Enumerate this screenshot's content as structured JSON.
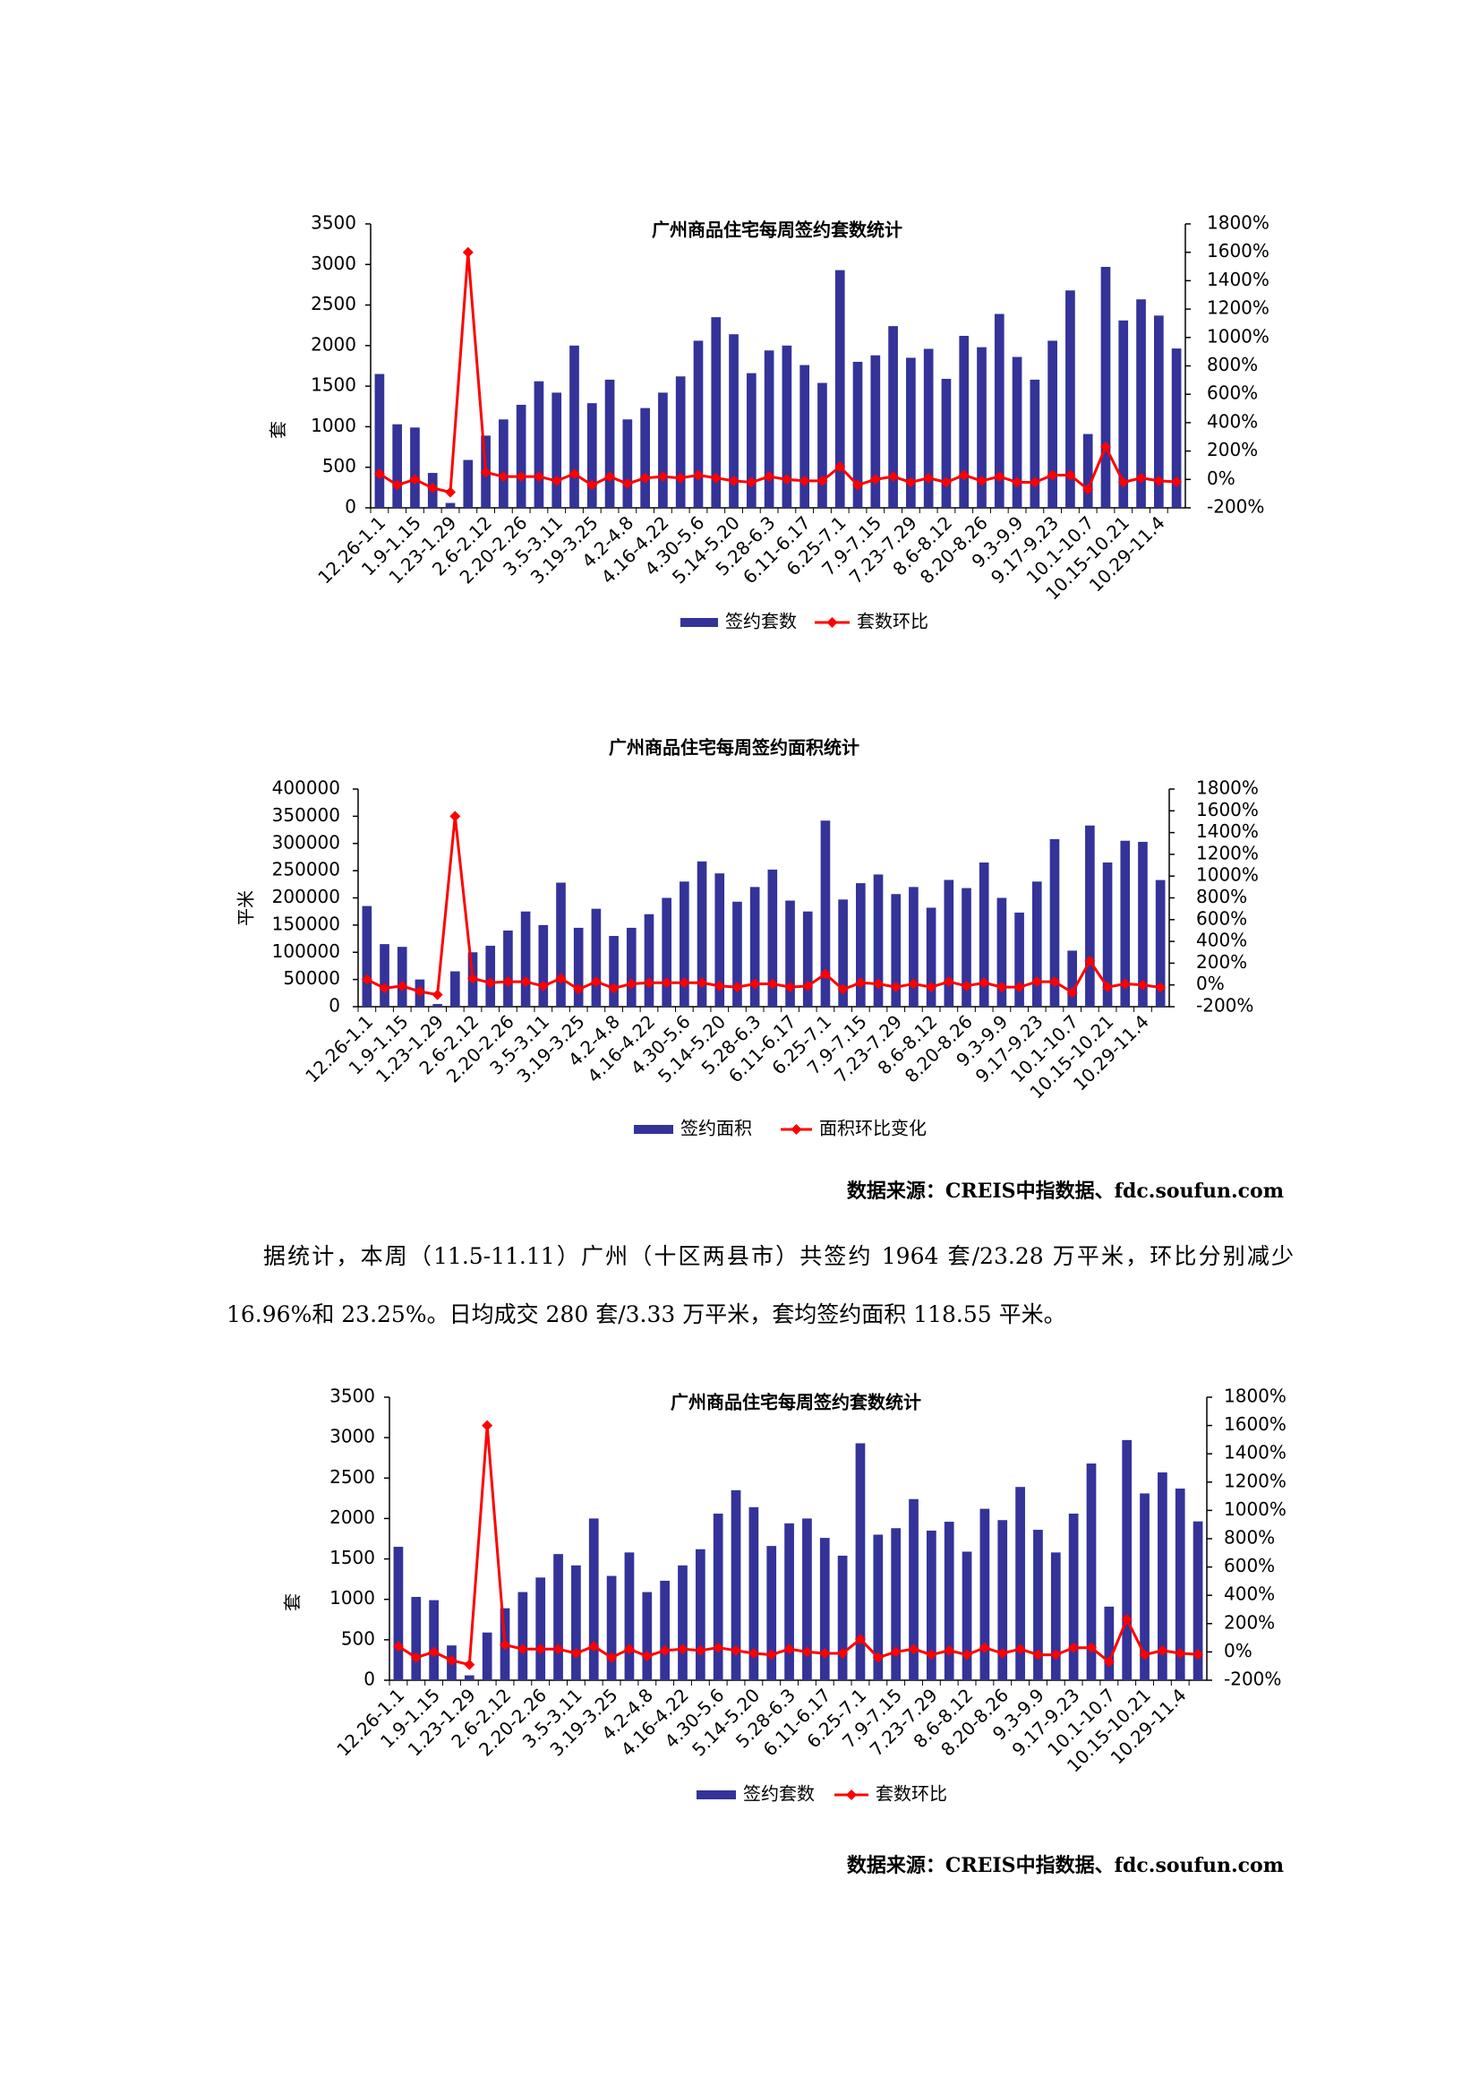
{
  "chart_data": [
    {
      "type": "bar",
      "title": "广州商品住宅每周签约套数统计",
      "ylabel": "套",
      "categories": [
        "12.26-1.1",
        null,
        "1.9-1.15",
        null,
        "1.23-1.29",
        null,
        "2.6-2.12",
        null,
        "2.20-2.26",
        null,
        "3.5-3.11",
        null,
        "3.19-3.25",
        null,
        "4.2-4.8",
        null,
        "4.16-4.22",
        null,
        "4.30-5.6",
        null,
        "5.14-5.20",
        null,
        "5.28-6.3",
        null,
        "6.11-6.17",
        null,
        "6.25-7.1",
        null,
        "7.9-7.15",
        null,
        "7.23-7.29",
        null,
        "8.6-8.12",
        null,
        "8.20-8.26",
        null,
        "9.3-9.9",
        null,
        "9.17-9.23",
        null,
        "10.1-10.7",
        null,
        "10.15-10.21",
        null,
        "10.29-11.4",
        null
      ],
      "series": [
        {
          "name": "签约套数",
          "type": "bar",
          "color": "#333399",
          "values": [
            1650,
            1030,
            990,
            430,
            60,
            590,
            890,
            1090,
            1270,
            1560,
            1420,
            2000,
            1290,
            1580,
            1090,
            1230,
            1420,
            1620,
            2060,
            2350,
            2140,
            1660,
            1940,
            2000,
            1760,
            1540,
            2930,
            1800,
            1880,
            2240,
            1850,
            1960,
            1590,
            2120,
            1980,
            2390,
            1860,
            1580,
            2060,
            2680,
            910,
            2970,
            2310,
            2570,
            2370,
            1964
          ]
        },
        {
          "name": "套数环比",
          "type": "line",
          "axis": "y2",
          "color": "#ff0000",
          "values": [
            40,
            -40,
            0,
            -60,
            -90,
            1600,
            50,
            20,
            20,
            20,
            -10,
            40,
            -40,
            20,
            -30,
            10,
            20,
            10,
            30,
            10,
            -10,
            -20,
            20,
            0,
            -10,
            -10,
            90,
            -40,
            0,
            20,
            -20,
            10,
            -20,
            30,
            -10,
            20,
            -20,
            -20,
            30,
            30,
            -70,
            230,
            -20,
            10,
            -10,
            -17
          ]
        }
      ],
      "ylim": [
        0,
        3500
      ],
      "yticks": [
        0,
        500,
        1000,
        1500,
        2000,
        2500,
        3000,
        3500
      ],
      "y2lim": [
        -200,
        1800
      ],
      "y2ticks": [
        {
          "value": -200,
          "label": "-200%"
        },
        {
          "value": 0,
          "label": "0%"
        },
        {
          "value": 200,
          "label": "200%"
        },
        {
          "value": 400,
          "label": "400%"
        },
        {
          "value": 600,
          "label": "600%"
        },
        {
          "value": 800,
          "label": "800%"
        },
        {
          "value": 1000,
          "label": "1000%"
        },
        {
          "value": 1200,
          "label": "1200%"
        },
        {
          "value": 1400,
          "label": "1400%"
        },
        {
          "value": 1600,
          "label": "1600%"
        },
        {
          "value": 1800,
          "label": "1800%"
        }
      ],
      "legend": "bottom"
    },
    {
      "type": "bar",
      "title": "广州商品住宅每周签约面积统计",
      "ylabel": "平米",
      "categories": [
        "12.26-1.1",
        null,
        "1.9-1.15",
        null,
        "1.23-1.29",
        null,
        "2.6-2.12",
        null,
        "2.20-2.26",
        null,
        "3.5-3.11",
        null,
        "3.19-3.25",
        null,
        "4.2-4.8",
        null,
        "4.16-4.22",
        null,
        "4.30-5.6",
        null,
        "5.14-5.20",
        null,
        "5.28-6.3",
        null,
        "6.11-6.17",
        null,
        "6.25-7.1",
        null,
        "7.9-7.15",
        null,
        "7.23-7.29",
        null,
        "8.6-8.12",
        null,
        "8.20-8.26",
        null,
        "9.3-9.9",
        null,
        "9.17-9.23",
        null,
        "10.1-10.7",
        null,
        "10.15-10.21",
        null,
        "10.29-11.4",
        null
      ],
      "series": [
        {
          "name": "签约面积",
          "type": "bar",
          "color": "#333399",
          "values": [
            185000,
            115000,
            110000,
            50000,
            5000,
            65000,
            100000,
            112000,
            140000,
            175000,
            150000,
            228000,
            145000,
            180000,
            130000,
            145000,
            170000,
            200000,
            230000,
            267000,
            245000,
            193000,
            220000,
            252000,
            195000,
            175000,
            342000,
            197000,
            227000,
            243000,
            207000,
            220000,
            182000,
            233000,
            218000,
            265000,
            200000,
            173000,
            230000,
            308000,
            103000,
            333000,
            265000,
            305000,
            303000,
            232800
          ]
        },
        {
          "name": "面积环比变化",
          "type": "line",
          "axis": "y2",
          "color": "#ff0000",
          "values": [
            50,
            -30,
            -10,
            -60,
            -90,
            1550,
            60,
            20,
            30,
            30,
            -10,
            60,
            -40,
            30,
            -30,
            10,
            20,
            20,
            20,
            20,
            -10,
            -20,
            10,
            10,
            -20,
            -10,
            100,
            -40,
            20,
            10,
            -20,
            10,
            -20,
            30,
            -10,
            20,
            -20,
            -20,
            30,
            30,
            -70,
            220,
            -20,
            10,
            0,
            -23
          ]
        }
      ],
      "ylim": [
        0,
        400000
      ],
      "yticks": [
        0,
        50000,
        100000,
        150000,
        200000,
        250000,
        300000,
        350000,
        400000
      ],
      "y2lim": [
        -200,
        1800
      ],
      "y2ticks": [
        {
          "value": -200,
          "label": "-200%"
        },
        {
          "value": 0,
          "label": "0%"
        },
        {
          "value": 200,
          "label": "200%"
        },
        {
          "value": 400,
          "label": "400%"
        },
        {
          "value": 600,
          "label": "600%"
        },
        {
          "value": 800,
          "label": "800%"
        },
        {
          "value": 1000,
          "label": "1000%"
        },
        {
          "value": 1200,
          "label": "1200%"
        },
        {
          "value": 1400,
          "label": "1400%"
        },
        {
          "value": 1600,
          "label": "1600%"
        },
        {
          "value": 1800,
          "label": "1800%"
        }
      ],
      "legend": "bottom"
    },
    {
      "type": "bar",
      "title": "广州商品住宅每周签约套数统计",
      "ylabel": "套",
      "categories": [
        "12.26-1.1",
        null,
        "1.9-1.15",
        null,
        "1.23-1.29",
        null,
        "2.6-2.12",
        null,
        "2.20-2.26",
        null,
        "3.5-3.11",
        null,
        "3.19-3.25",
        null,
        "4.2-4.8",
        null,
        "4.16-4.22",
        null,
        "4.30-5.6",
        null,
        "5.14-5.20",
        null,
        "5.28-6.3",
        null,
        "6.11-6.17",
        null,
        "6.25-7.1",
        null,
        "7.9-7.15",
        null,
        "7.23-7.29",
        null,
        "8.6-8.12",
        null,
        "8.20-8.26",
        null,
        "9.3-9.9",
        null,
        "9.17-9.23",
        null,
        "10.1-10.7",
        null,
        "10.15-10.21",
        null,
        "10.29-11.4",
        null
      ],
      "series": [
        {
          "name": "签约套数",
          "type": "bar",
          "color": "#333399",
          "values": [
            1650,
            1030,
            990,
            430,
            60,
            590,
            890,
            1090,
            1270,
            1560,
            1420,
            2000,
            1290,
            1580,
            1090,
            1230,
            1420,
            1620,
            2060,
            2350,
            2140,
            1660,
            1940,
            2000,
            1760,
            1540,
            2930,
            1800,
            1880,
            2240,
            1850,
            1960,
            1590,
            2120,
            1980,
            2390,
            1860,
            1580,
            2060,
            2680,
            910,
            2970,
            2310,
            2570,
            2370,
            1964
          ]
        },
        {
          "name": "套数环比",
          "type": "line",
          "axis": "y2",
          "color": "#ff0000",
          "values": [
            40,
            -40,
            0,
            -60,
            -90,
            1600,
            50,
            20,
            20,
            20,
            -10,
            40,
            -40,
            20,
            -30,
            10,
            20,
            10,
            30,
            10,
            -10,
            -20,
            20,
            0,
            -10,
            -10,
            90,
            -40,
            0,
            20,
            -20,
            10,
            -20,
            30,
            -10,
            20,
            -20,
            -20,
            30,
            30,
            -70,
            230,
            -20,
            10,
            -10,
            -17
          ]
        }
      ],
      "ylim": [
        0,
        3500
      ],
      "yticks": [
        0,
        500,
        1000,
        1500,
        2000,
        2500,
        3000,
        3500
      ],
      "y2lim": [
        -200,
        1800
      ],
      "y2ticks": [
        {
          "value": -200,
          "label": "-200%"
        },
        {
          "value": 0,
          "label": "0%"
        },
        {
          "value": 200,
          "label": "200%"
        },
        {
          "value": 400,
          "label": "400%"
        },
        {
          "value": 600,
          "label": "600%"
        },
        {
          "value": 800,
          "label": "800%"
        },
        {
          "value": 1000,
          "label": "1000%"
        },
        {
          "value": 1200,
          "label": "1200%"
        },
        {
          "value": 1400,
          "label": "1400%"
        },
        {
          "value": 1600,
          "label": "1600%"
        },
        {
          "value": 1800,
          "label": "1800%"
        }
      ],
      "legend": "bottom"
    }
  ],
  "document": {
    "source_1": "数据来源：CREIS中指数据、fdc.soufun.com",
    "paragraph": "据统计，本周（11.5-11.11）广州（十区两县市）共签约 1964 套/23.28 万平米，环比分别减少 16.96%和 23.25%。日均成交 280 套/3.33 万平米，套均签约面积 118.55 平米。",
    "source_2": "数据来源：CREIS中指数据、fdc.soufun.com"
  }
}
